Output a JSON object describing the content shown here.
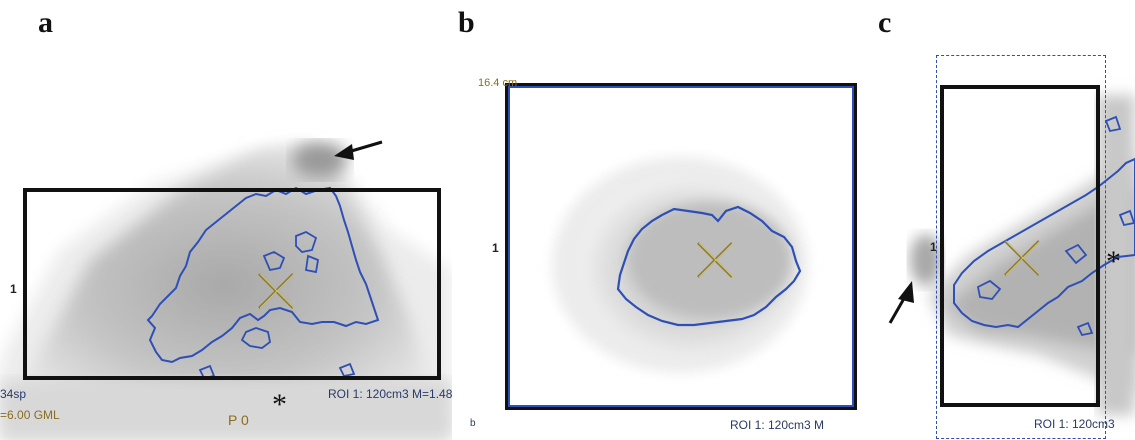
{
  "panels": [
    {
      "letter": "a",
      "marker": "1",
      "scan_info_1": "34sp",
      "scan_info_2": "=6.00 GML",
      "position_label": "P 0",
      "roi_label": "ROI 1: 120cm3 M=1.48",
      "asterisk": "*"
    },
    {
      "letter": "b",
      "scale": "16.4 cm",
      "marker": "1",
      "roi_label": "ROI 1: 120cm3 M",
      "corner_mark": "b"
    },
    {
      "letter": "c",
      "marker": "1",
      "roi_label": "ROI 1: 120cm3",
      "asterisk": "*"
    }
  ],
  "colors": {
    "roi_contour": "#2e4fb5",
    "roi_box": "#111111",
    "crosshair": "#8a7a30",
    "tissue_dark": "#8c8c8c",
    "tissue_light": "#d4d4d4"
  }
}
